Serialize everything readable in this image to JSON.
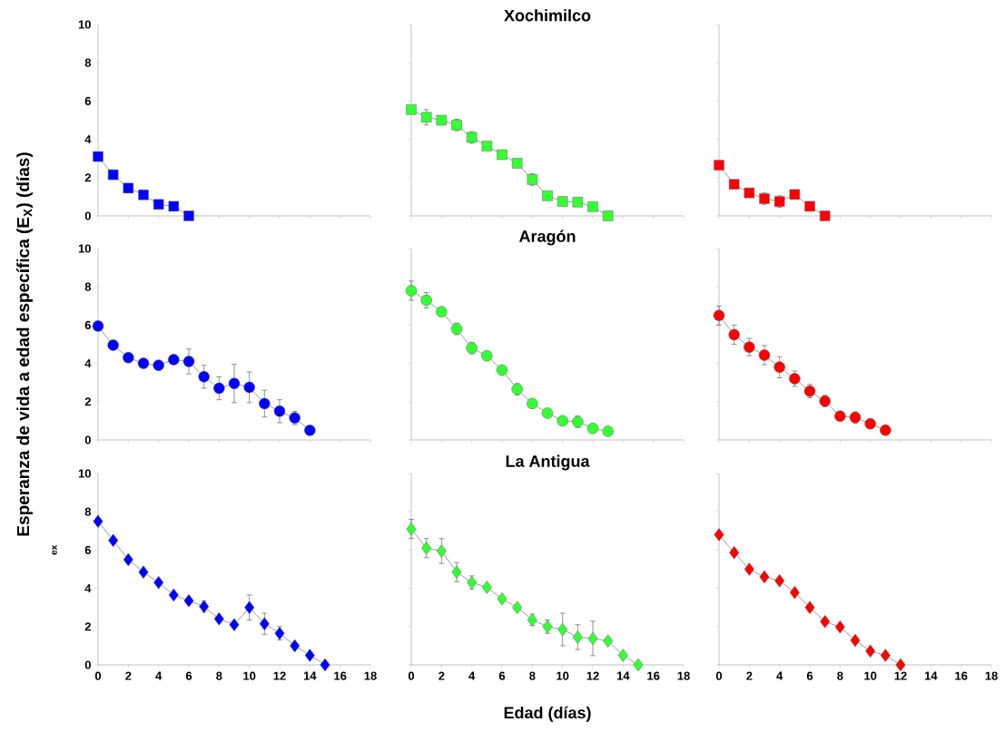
{
  "chart_data": [
    {
      "type": "line",
      "marker": "square",
      "tick_labels": "y",
      "xlim": [
        0,
        18
      ],
      "ylim": [
        0,
        10
      ],
      "xticks": [
        0,
        2,
        4,
        6,
        8,
        10,
        12,
        14,
        16,
        18
      ],
      "yticks": [
        0,
        2,
        4,
        6,
        8,
        10
      ],
      "x": [
        0,
        1,
        2,
        3,
        4,
        5,
        6
      ],
      "series": [
        {
          "color": "#0000ff",
          "values": [
            3.1,
            2.15,
            1.45,
            1.1,
            0.6,
            0.5,
            0
          ]
        }
      ]
    },
    {
      "type": "line",
      "marker": "square",
      "tick_labels": false,
      "title": "Xochimilco",
      "xlim": [
        0,
        18
      ],
      "ylim": [
        0,
        10
      ],
      "xticks": [
        0,
        2,
        4,
        6,
        8,
        10,
        12,
        14,
        16,
        18
      ],
      "yticks": [
        0,
        2,
        4,
        6,
        8,
        10
      ],
      "x": [
        0,
        1,
        2,
        3,
        4,
        5,
        6,
        7,
        8,
        9,
        10,
        11,
        12,
        13
      ],
      "series": [
        {
          "color": "#33ff33",
          "values": [
            5.55,
            5.15,
            5.0,
            4.75,
            4.1,
            3.65,
            3.2,
            2.75,
            1.9,
            1.05,
            0.75,
            0.72,
            0.48,
            0
          ],
          "errors": [
            null,
            0.4,
            null,
            0.3,
            0.3,
            null,
            null,
            null,
            0.3,
            null,
            null,
            null,
            null,
            null
          ]
        }
      ]
    },
    {
      "type": "line",
      "marker": "square",
      "tick_labels": false,
      "xlim": [
        0,
        18
      ],
      "ylim": [
        0,
        10
      ],
      "xticks": [
        0,
        2,
        4,
        6,
        8,
        10,
        12,
        14,
        16,
        18
      ],
      "yticks": [
        0,
        2,
        4,
        6,
        8,
        10
      ],
      "x": [
        0,
        1,
        2,
        3,
        4,
        5,
        6,
        7
      ],
      "series": [
        {
          "color": "#ff0000",
          "values": [
            2.65,
            1.65,
            1.2,
            0.9,
            0.75,
            1.12,
            0.5,
            0
          ],
          "errors": [
            null,
            null,
            null,
            0.3,
            0.3,
            null,
            null,
            null
          ]
        }
      ]
    },
    {
      "type": "line",
      "marker": "circle",
      "tick_labels": "y",
      "ylabel": "Esperanza de vida a edad específica (E$_{X}$) (días)",
      "xlim": [
        0,
        18
      ],
      "ylim": [
        0,
        10
      ],
      "xticks": [
        0,
        2,
        4,
        6,
        8,
        10,
        12,
        14,
        16,
        18
      ],
      "yticks": [
        0,
        2,
        4,
        6,
        8,
        10
      ],
      "x": [
        0,
        1,
        2,
        3,
        4,
        5,
        6,
        7,
        8,
        9,
        10,
        11,
        12,
        13,
        14
      ],
      "series": [
        {
          "color": "#0000ff",
          "values": [
            5.95,
            4.95,
            4.3,
            4.0,
            3.9,
            4.2,
            4.1,
            3.3,
            2.7,
            2.95,
            2.75,
            1.9,
            1.5,
            1.15,
            0.5
          ],
          "errors": [
            null,
            null,
            null,
            null,
            null,
            null,
            0.65,
            0.6,
            0.6,
            1.0,
            0.8,
            0.7,
            0.6,
            0.35,
            null
          ]
        }
      ]
    },
    {
      "type": "line",
      "marker": "circle",
      "tick_labels": false,
      "title": "Aragón",
      "xlim": [
        0,
        18
      ],
      "ylim": [
        0,
        10
      ],
      "xticks": [
        0,
        2,
        4,
        6,
        8,
        10,
        12,
        14,
        16,
        18
      ],
      "yticks": [
        0,
        2,
        4,
        6,
        8,
        10
      ],
      "x": [
        0,
        1,
        2,
        3,
        4,
        5,
        6,
        7,
        8,
        9,
        10,
        11,
        12,
        13
      ],
      "series": [
        {
          "color": "#33ff33",
          "values": [
            7.8,
            7.3,
            6.7,
            5.8,
            4.8,
            4.4,
            3.65,
            2.65,
            1.9,
            1.4,
            1.0,
            0.95,
            0.6,
            0.45
          ],
          "errors": [
            0.5,
            0.4,
            null,
            0.3,
            0.3,
            null,
            null,
            0.3,
            null,
            null,
            null,
            0.3,
            null,
            null
          ]
        }
      ]
    },
    {
      "type": "line",
      "marker": "circle",
      "tick_labels": false,
      "xlim": [
        0,
        18
      ],
      "ylim": [
        0,
        10
      ],
      "xticks": [
        0,
        2,
        4,
        6,
        8,
        10,
        12,
        14,
        16,
        18
      ],
      "yticks": [
        0,
        2,
        4,
        6,
        8,
        10
      ],
      "x": [
        0,
        1,
        2,
        3,
        4,
        5,
        6,
        7,
        8,
        9,
        10,
        11
      ],
      "series": [
        {
          "color": "#ff0000",
          "values": [
            6.5,
            5.5,
            4.85,
            4.43,
            3.8,
            3.2,
            2.55,
            2.03,
            1.24,
            1.17,
            0.84,
            0.51
          ],
          "errors": [
            0.5,
            0.5,
            0.45,
            0.5,
            0.55,
            0.4,
            0.35,
            0.3,
            null,
            0.3,
            null,
            null
          ]
        }
      ]
    },
    {
      "type": "line",
      "marker": "diamond",
      "ylabel": "ex",
      "xlim": [
        0,
        18
      ],
      "ylim": [
        0,
        10
      ],
      "xticks": [
        0,
        2,
        4,
        6,
        8,
        10,
        12,
        14,
        16,
        18
      ],
      "yticks": [
        0,
        2,
        4,
        6,
        8,
        10
      ],
      "x": [
        0,
        1,
        2,
        3,
        4,
        5,
        6,
        7,
        8,
        9,
        10,
        11,
        12,
        13,
        14,
        15
      ],
      "series": [
        {
          "color": "#0000ff",
          "values": [
            7.5,
            6.5,
            5.5,
            4.85,
            4.3,
            3.65,
            3.35,
            3.05,
            2.4,
            2.1,
            3.0,
            2.15,
            1.65,
            1.0,
            0.5,
            0
          ],
          "errors": [
            null,
            null,
            null,
            null,
            null,
            null,
            null,
            0.3,
            null,
            null,
            0.65,
            0.55,
            0.35,
            null,
            null,
            null
          ]
        }
      ]
    },
    {
      "type": "line",
      "marker": "diamond",
      "tick_labels": "x",
      "title": "La Antigua",
      "xlabel": "Edad (días)",
      "xlim": [
        0,
        18
      ],
      "ylim": [
        0,
        10
      ],
      "xticks": [
        0,
        2,
        4,
        6,
        8,
        10,
        12,
        14,
        16,
        18
      ],
      "yticks": [
        0,
        2,
        4,
        6,
        8,
        10
      ],
      "x": [
        0,
        1,
        2,
        3,
        4,
        5,
        6,
        7,
        8,
        9,
        10,
        11,
        12,
        13,
        14,
        15
      ],
      "series": [
        {
          "color": "#33ff33",
          "values": [
            7.1,
            6.1,
            5.95,
            4.85,
            4.3,
            4.05,
            3.45,
            3.0,
            2.35,
            2.0,
            1.85,
            1.45,
            1.38,
            1.25,
            0.5,
            0
          ],
          "errors": [
            0.5,
            0.5,
            0.65,
            0.5,
            0.35,
            null,
            null,
            null,
            0.3,
            0.35,
            0.85,
            0.65,
            0.9,
            null,
            null,
            null
          ]
        }
      ]
    },
    {
      "type": "line",
      "marker": "diamond",
      "tick_labels": "x",
      "xlim": [
        0,
        18
      ],
      "ylim": [
        0,
        10
      ],
      "xticks": [
        0,
        2,
        4,
        6,
        8,
        10,
        12,
        14,
        16,
        18
      ],
      "yticks": [
        0,
        2,
        4,
        6,
        8,
        10
      ],
      "x": [
        0,
        1,
        2,
        3,
        4,
        5,
        6,
        7,
        8,
        9,
        10,
        11,
        12
      ],
      "series": [
        {
          "color": "#ff0000",
          "values": [
            6.8,
            5.86,
            5.0,
            4.6,
            4.4,
            3.78,
            3.0,
            2.26,
            1.98,
            1.28,
            0.72,
            0.5,
            0
          ]
        }
      ]
    }
  ]
}
